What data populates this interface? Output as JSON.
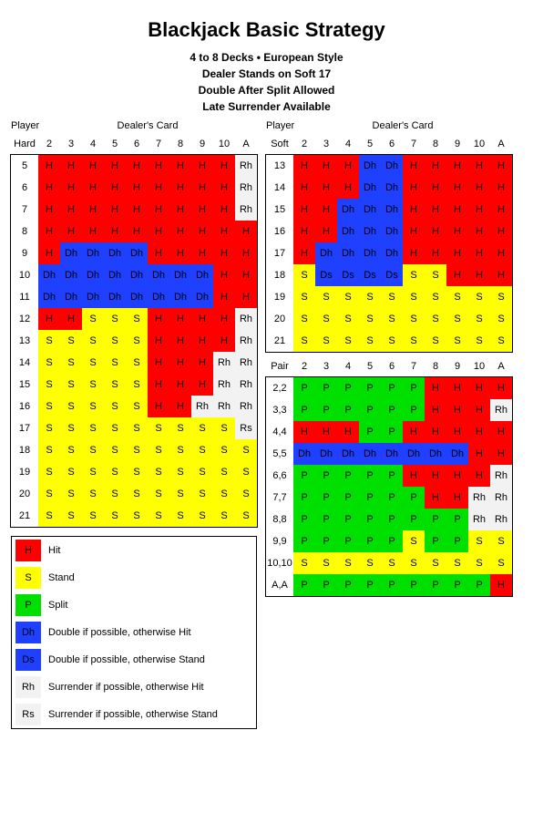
{
  "title": "Blackjack Basic Strategy",
  "subtitles": [
    "4 to 8 Decks • European Style",
    "Dealer Stands on Soft 17",
    "Double After Split Allowed",
    "Late Surrender Available"
  ],
  "labels": {
    "player": "Player",
    "dealer": "Dealer's Card",
    "hard": "Hard",
    "soft": "Soft",
    "pair": "Pair"
  },
  "dealer_cards": [
    "2",
    "3",
    "4",
    "5",
    "6",
    "7",
    "8",
    "9",
    "10",
    "A"
  ],
  "colors": {
    "H": "#ff0000",
    "S": "#ffff00",
    "P": "#00e000",
    "Dh": "#2040ff",
    "Ds": "#2040ff",
    "Rh": "#f2f2f2",
    "Rs": "#f2f2f2",
    "bg": "#ffffff",
    "border": "#000000"
  },
  "hard": {
    "rows": [
      "5",
      "6",
      "7",
      "8",
      "9",
      "10",
      "11",
      "12",
      "13",
      "14",
      "15",
      "16",
      "17",
      "18",
      "19",
      "20",
      "21"
    ],
    "grid": [
      [
        "H",
        "H",
        "H",
        "H",
        "H",
        "H",
        "H",
        "H",
        "H",
        "Rh"
      ],
      [
        "H",
        "H",
        "H",
        "H",
        "H",
        "H",
        "H",
        "H",
        "H",
        "Rh"
      ],
      [
        "H",
        "H",
        "H",
        "H",
        "H",
        "H",
        "H",
        "H",
        "H",
        "Rh"
      ],
      [
        "H",
        "H",
        "H",
        "H",
        "H",
        "H",
        "H",
        "H",
        "H",
        "H"
      ],
      [
        "H",
        "Dh",
        "Dh",
        "Dh",
        "Dh",
        "H",
        "H",
        "H",
        "H",
        "H"
      ],
      [
        "Dh",
        "Dh",
        "Dh",
        "Dh",
        "Dh",
        "Dh",
        "Dh",
        "Dh",
        "H",
        "H"
      ],
      [
        "Dh",
        "Dh",
        "Dh",
        "Dh",
        "Dh",
        "Dh",
        "Dh",
        "Dh",
        "H",
        "H"
      ],
      [
        "H",
        "H",
        "S",
        "S",
        "S",
        "H",
        "H",
        "H",
        "H",
        "Rh"
      ],
      [
        "S",
        "S",
        "S",
        "S",
        "S",
        "H",
        "H",
        "H",
        "H",
        "Rh"
      ],
      [
        "S",
        "S",
        "S",
        "S",
        "S",
        "H",
        "H",
        "H",
        "Rh",
        "Rh"
      ],
      [
        "S",
        "S",
        "S",
        "S",
        "S",
        "H",
        "H",
        "H",
        "Rh",
        "Rh"
      ],
      [
        "S",
        "S",
        "S",
        "S",
        "S",
        "H",
        "H",
        "Rh",
        "Rh",
        "Rh"
      ],
      [
        "S",
        "S",
        "S",
        "S",
        "S",
        "S",
        "S",
        "S",
        "S",
        "Rs"
      ],
      [
        "S",
        "S",
        "S",
        "S",
        "S",
        "S",
        "S",
        "S",
        "S",
        "S"
      ],
      [
        "S",
        "S",
        "S",
        "S",
        "S",
        "S",
        "S",
        "S",
        "S",
        "S"
      ],
      [
        "S",
        "S",
        "S",
        "S",
        "S",
        "S",
        "S",
        "S",
        "S",
        "S"
      ],
      [
        "S",
        "S",
        "S",
        "S",
        "S",
        "S",
        "S",
        "S",
        "S",
        "S"
      ]
    ]
  },
  "soft": {
    "rows": [
      "13",
      "14",
      "15",
      "16",
      "17",
      "18",
      "19",
      "20",
      "21"
    ],
    "grid": [
      [
        "H",
        "H",
        "H",
        "Dh",
        "Dh",
        "H",
        "H",
        "H",
        "H",
        "H"
      ],
      [
        "H",
        "H",
        "H",
        "Dh",
        "Dh",
        "H",
        "H",
        "H",
        "H",
        "H"
      ],
      [
        "H",
        "H",
        "Dh",
        "Dh",
        "Dh",
        "H",
        "H",
        "H",
        "H",
        "H"
      ],
      [
        "H",
        "H",
        "Dh",
        "Dh",
        "Dh",
        "H",
        "H",
        "H",
        "H",
        "H"
      ],
      [
        "H",
        "Dh",
        "Dh",
        "Dh",
        "Dh",
        "H",
        "H",
        "H",
        "H",
        "H"
      ],
      [
        "S",
        "Ds",
        "Ds",
        "Ds",
        "Ds",
        "S",
        "S",
        "H",
        "H",
        "H"
      ],
      [
        "S",
        "S",
        "S",
        "S",
        "S",
        "S",
        "S",
        "S",
        "S",
        "S"
      ],
      [
        "S",
        "S",
        "S",
        "S",
        "S",
        "S",
        "S",
        "S",
        "S",
        "S"
      ],
      [
        "S",
        "S",
        "S",
        "S",
        "S",
        "S",
        "S",
        "S",
        "S",
        "S"
      ]
    ]
  },
  "pair": {
    "rows": [
      "2,2",
      "3,3",
      "4,4",
      "5,5",
      "6,6",
      "7,7",
      "8,8",
      "9,9",
      "10,10",
      "A,A"
    ],
    "grid": [
      [
        "P",
        "P",
        "P",
        "P",
        "P",
        "P",
        "H",
        "H",
        "H",
        "H"
      ],
      [
        "P",
        "P",
        "P",
        "P",
        "P",
        "P",
        "H",
        "H",
        "H",
        "Rh"
      ],
      [
        "H",
        "H",
        "H",
        "P",
        "P",
        "H",
        "H",
        "H",
        "H",
        "H"
      ],
      [
        "Dh",
        "Dh",
        "Dh",
        "Dh",
        "Dh",
        "Dh",
        "Dh",
        "Dh",
        "H",
        "H"
      ],
      [
        "P",
        "P",
        "P",
        "P",
        "P",
        "H",
        "H",
        "H",
        "H",
        "Rh"
      ],
      [
        "P",
        "P",
        "P",
        "P",
        "P",
        "P",
        "H",
        "H",
        "Rh",
        "Rh"
      ],
      [
        "P",
        "P",
        "P",
        "P",
        "P",
        "P",
        "P",
        "P",
        "Rh",
        "Rh"
      ],
      [
        "P",
        "P",
        "P",
        "P",
        "P",
        "S",
        "P",
        "P",
        "S",
        "S"
      ],
      [
        "S",
        "S",
        "S",
        "S",
        "S",
        "S",
        "S",
        "S",
        "S",
        "S"
      ],
      [
        "P",
        "P",
        "P",
        "P",
        "P",
        "P",
        "P",
        "P",
        "P",
        "H"
      ]
    ]
  },
  "legend": [
    {
      "code": "H",
      "label": "Hit"
    },
    {
      "code": "S",
      "label": "Stand"
    },
    {
      "code": "P",
      "label": "Split"
    },
    {
      "code": "Dh",
      "label": "Double if possible, otherwise Hit"
    },
    {
      "code": "Ds",
      "label": "Double if possible, otherwise Stand"
    },
    {
      "code": "Rh",
      "label": "Surrender if possible, otherwise Hit"
    },
    {
      "code": "Rs",
      "label": "Surrender if possible, otherwise Stand"
    }
  ]
}
